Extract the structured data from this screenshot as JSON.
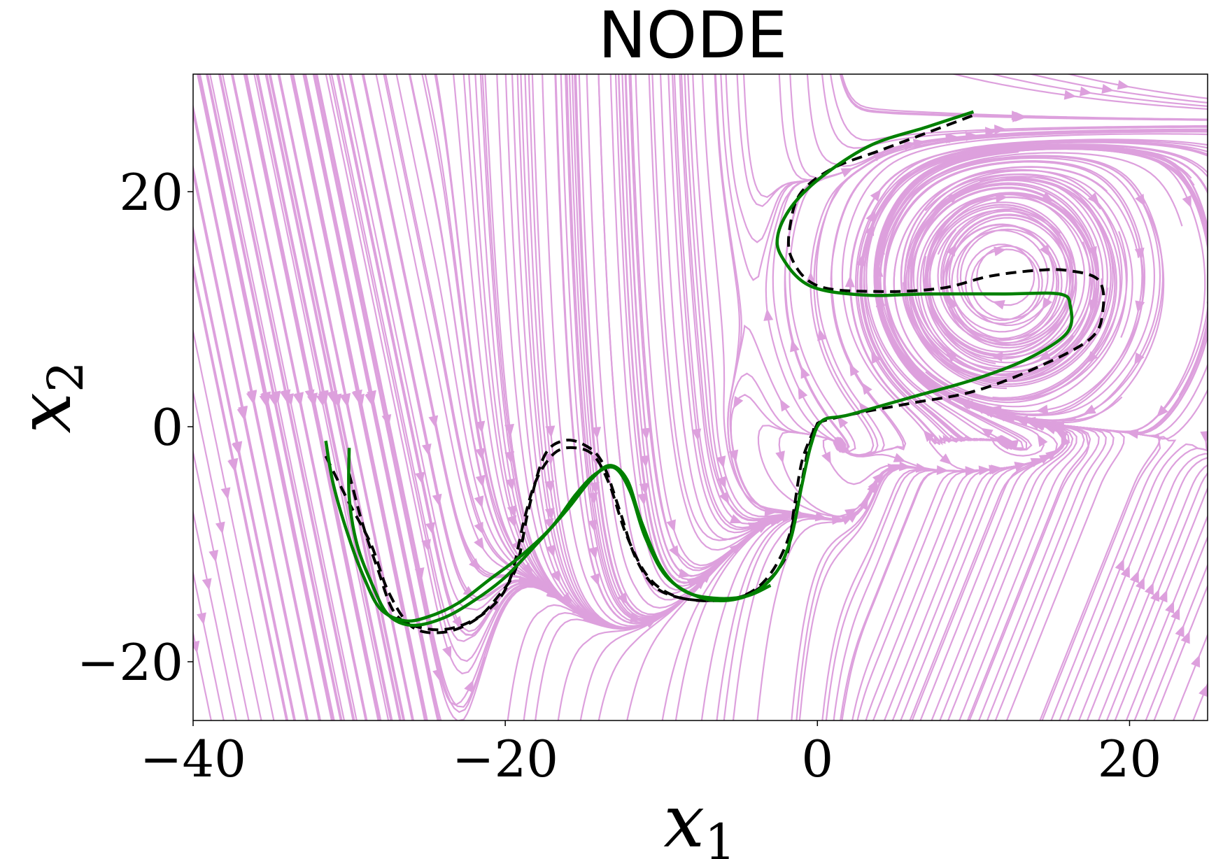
{
  "chart_data": {
    "type": "line",
    "title": "NODE",
    "xlabel": "x",
    "xlabel_sub": "1",
    "ylabel": "x",
    "ylabel_sub": "2",
    "xlim": [
      -40,
      25
    ],
    "ylim": [
      -25,
      30
    ],
    "xticks": [
      -40,
      -20,
      0,
      20
    ],
    "xtick_labels": [
      "−40",
      "−20",
      "0",
      "20"
    ],
    "yticks": [
      -20,
      0,
      20
    ],
    "ytick_labels": [
      "−20",
      "0",
      "20"
    ],
    "grid": false,
    "legend": "none",
    "colors": {
      "streamlines": "#dda0dd",
      "demonstrations": "#000000",
      "reproductions": "#008000"
    },
    "series": [
      {
        "style": "dashed",
        "color": "#000000",
        "x": [
          -31.5,
          -30,
          -28.6,
          -27.5,
          -26,
          -24,
          -22,
          -20.5,
          -19.3,
          -18.5,
          -17.5,
          -16.3,
          -15,
          -13.8,
          -12.7,
          -11.7,
          -10.5,
          -9,
          -7,
          -5,
          -3.5,
          -2,
          -1.5,
          -1,
          -0.3,
          0,
          2,
          6,
          10,
          14,
          17.5,
          18.3,
          18,
          16,
          14,
          11,
          8,
          4,
          0,
          -1.7,
          -1.7,
          -1,
          1,
          4,
          7,
          10
        ],
        "y": [
          -2.5,
          -6.5,
          -10,
          -14,
          -17,
          -17.5,
          -16.5,
          -14.5,
          -12,
          -7,
          -2.5,
          -1.2,
          -1.5,
          -3,
          -7,
          -11,
          -13.5,
          -14.5,
          -14.8,
          -14.5,
          -13.5,
          -11,
          -7,
          -3,
          -0.5,
          0.3,
          1,
          2,
          3,
          5,
          7.5,
          10,
          12.5,
          13.3,
          13.3,
          12.8,
          11.8,
          11.5,
          12,
          14.5,
          17.5,
          20,
          22,
          23.5,
          25,
          26.5
        ]
      },
      {
        "style": "dashed",
        "color": "#000000",
        "x": [
          -30,
          -29.2,
          -28.2,
          -27,
          -25,
          -23,
          -21,
          -19.7,
          -18.8,
          -18,
          -16.8,
          -15.5,
          -14.3,
          -13.3,
          -12.3,
          -11,
          -9.5,
          -7.5,
          -5,
          -3.3,
          -2,
          -1.2,
          -0.6,
          0
        ],
        "y": [
          -4,
          -8,
          -12,
          -16,
          -17.2,
          -17,
          -15.5,
          -13,
          -8,
          -4.5,
          -2.2,
          -1.8,
          -2.5,
          -5,
          -9,
          -12.5,
          -14.2,
          -14.8,
          -14.5,
          -13,
          -10,
          -6,
          -2,
          0.3
        ]
      },
      {
        "style": "solid",
        "color": "#008000",
        "x": [
          -31.5,
          -31,
          -30,
          -29,
          -28,
          -26.5,
          -25,
          -23,
          -21,
          -19,
          -17,
          -15.5,
          -14.2,
          -13,
          -12,
          -11,
          -9.5,
          -7,
          -4.5,
          -2.7,
          -1.7,
          -1,
          -0.4,
          0.3,
          2,
          6,
          10,
          13.5,
          16,
          16.2,
          15.5,
          12,
          7,
          3,
          -0.5,
          -2.3,
          -2.5,
          -1.5,
          0.5,
          3.5,
          7,
          10
        ],
        "y": [
          -1.2,
          -5,
          -9.5,
          -13,
          -15.5,
          -16.5,
          -16.2,
          -15,
          -13,
          -11,
          -8.5,
          -5.8,
          -4,
          -3.5,
          -5.5,
          -9.5,
          -13,
          -14.7,
          -14.4,
          -12.5,
          -9.5,
          -5,
          -1.5,
          0.5,
          1,
          2.5,
          4,
          5.8,
          8,
          10.3,
          11.3,
          11.3,
          11.3,
          11.2,
          12,
          14.5,
          16.5,
          19,
          21.5,
          24,
          25.5,
          26.8
        ]
      },
      {
        "style": "solid",
        "color": "#008000",
        "x": [
          -30,
          -30,
          -29.5,
          -28.5,
          -27.5,
          -26,
          -24,
          -22,
          -20,
          -18,
          -16,
          -14.5,
          -13.3,
          -12.2,
          -11.3,
          -10,
          -8.5,
          -6.5,
          -4.5,
          -3
        ],
        "y": [
          -1.8,
          -6,
          -10,
          -13.5,
          -16,
          -16.9,
          -16.3,
          -14.8,
          -12.8,
          -10,
          -7,
          -4.5,
          -3.3,
          -4.5,
          -8,
          -12,
          -14,
          -14.6,
          -14.4,
          -13.5
        ]
      }
    ]
  }
}
